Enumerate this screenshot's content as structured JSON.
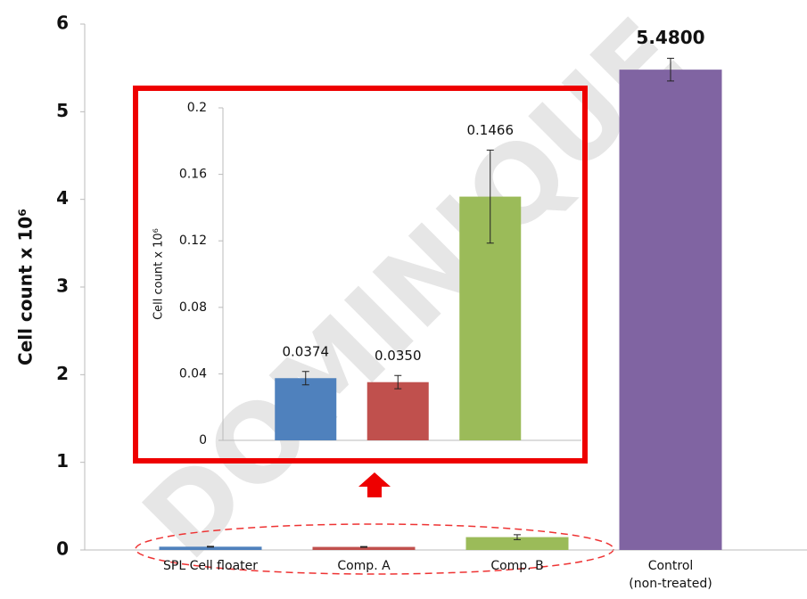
{
  "watermark": "DOMINIQUE",
  "chart_data": [
    {
      "type": "bar",
      "y_label": "Cell count x 10⁶",
      "categories": [
        "SPL Cell floater",
        "Comp. A",
        "Comp. B",
        "Control\n(non-treated)"
      ],
      "values": [
        0.0374,
        0.035,
        0.1466,
        5.48
      ],
      "errors": [
        0.004,
        0.004,
        0.028,
        0.13
      ],
      "value_labels": [
        null,
        null,
        null,
        "5.4800"
      ],
      "colors": [
        "#4f81bd",
        "#c0504d",
        "#9bbb59",
        "#8064a2"
      ],
      "ylim": [
        0,
        6
      ],
      "yticks": [
        0,
        1,
        2,
        3,
        4,
        5,
        6
      ]
    },
    {
      "type": "bar",
      "y_label": "Cell count x 10⁶",
      "categories": [
        null,
        null,
        null
      ],
      "values": [
        0.0374,
        0.035,
        0.1466
      ],
      "errors": [
        0.004,
        0.004,
        0.028
      ],
      "value_labels": [
        "0.0374",
        "0.0350",
        "0.1466"
      ],
      "colors": [
        "#4f81bd",
        "#c0504d",
        "#9bbb59"
      ],
      "ylim": [
        0,
        0.2
      ],
      "yticks": [
        0,
        0.04,
        0.08,
        0.12,
        0.16,
        0.2
      ]
    }
  ]
}
